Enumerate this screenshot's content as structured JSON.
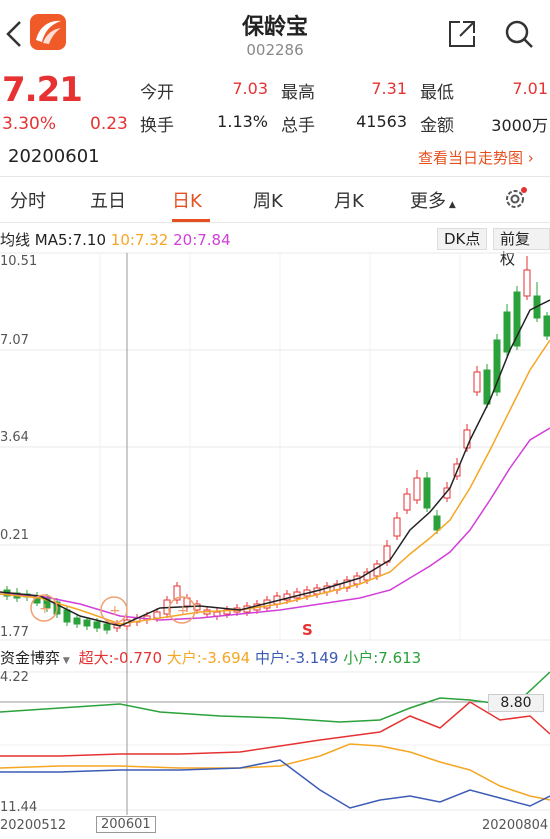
{
  "header": {
    "title": "保龄宝",
    "code": "002286",
    "icons": {
      "back": "back-arrow-icon",
      "logo": "app-logo-icon",
      "share": "share-icon",
      "search": "search-icon"
    }
  },
  "quote": {
    "price": "7.21",
    "change_pct": "3.30%",
    "change": "0.23",
    "stats": [
      {
        "label": "今开",
        "value": "7.03",
        "color": "red"
      },
      {
        "label": "最高",
        "value": "7.31",
        "color": "red"
      },
      {
        "label": "最低",
        "value": "7.01",
        "color": "red"
      },
      {
        "label": "换手",
        "value": "1.13%",
        "color": "dark"
      },
      {
        "label": "总手",
        "value": "41563",
        "color": "dark"
      },
      {
        "label": "金额",
        "value": "3000万",
        "color": "dark"
      }
    ],
    "date": "20200601",
    "trend_link": "查看当日走势图"
  },
  "tabs": [
    {
      "label": "分时"
    },
    {
      "label": "五日"
    },
    {
      "label": "日K"
    },
    {
      "label": "周K"
    },
    {
      "label": "月K"
    },
    {
      "label": "更多"
    }
  ],
  "active_tab": "日K",
  "ma_legend": {
    "label": "均线",
    "ma5": "MA5:7.10",
    "ma10": "10:7.32",
    "ma20": "20:7.84",
    "colors": {
      "ma5": "#222222",
      "ma10": "#f5a623",
      "ma20": "#d23fd8"
    }
  },
  "buttons": {
    "dk": "DK点",
    "fq": "前复权"
  },
  "price_axis": [
    "10.51",
    "7.07",
    "3.64",
    "0.21",
    "1.77"
  ],
  "s_marker": "S",
  "fund_flow": {
    "label": "资金博弈",
    "super": "超大:-0.770",
    "large": "大户:-3.694",
    "medium": "中户:-3.149",
    "small": "小户:7.613",
    "colors": {
      "super": "#e63232",
      "large": "#f5a623",
      "medium": "#3b5bb5",
      "small": "#2aa13a"
    }
  },
  "flow_axis": [
    "4.22",
    "11.44"
  ],
  "flow_marker": "8.80",
  "date_axis": [
    "20200512",
    "200601",
    "20200804"
  ],
  "chart_data": {
    "type": "candlestick",
    "colors": {
      "up": "#e63232",
      "down": "#2aa13a"
    }
  }
}
